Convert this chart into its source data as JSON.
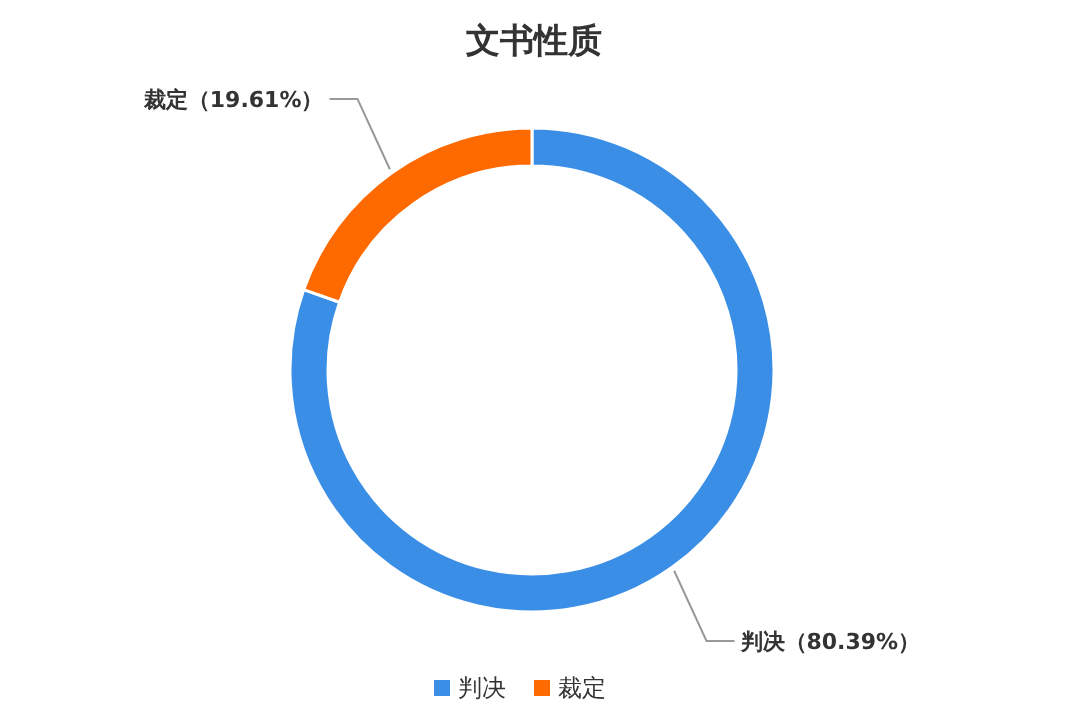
{
  "chart_data": {
    "type": "donut",
    "title": "文书性质",
    "categories": [
      "判决",
      "裁定"
    ],
    "values": [
      80.39,
      19.61
    ],
    "value_labels": [
      "（80.39%）",
      "（19.61%）"
    ],
    "colors": [
      "#3a8ee6",
      "#ff6a00"
    ],
    "legend": "bottom"
  }
}
